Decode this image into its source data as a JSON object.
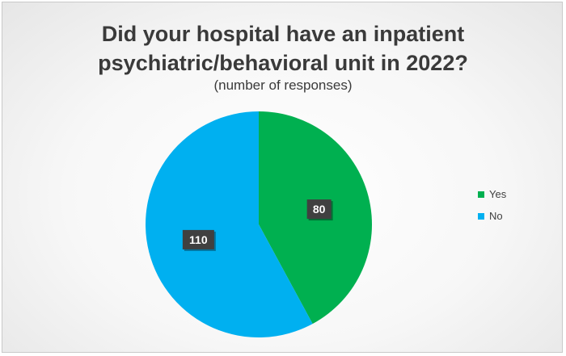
{
  "chart_data": {
    "type": "pie",
    "title_line1": "Did your hospital have an inpatient",
    "title_line2": "psychiatric/behavioral unit in 2022?",
    "subtitle": "(number of responses)",
    "categories": [
      "Yes",
      "No"
    ],
    "values": [
      80,
      110
    ],
    "colors": [
      "#00b050",
      "#00b0f0"
    ],
    "data_labels": [
      "80",
      "110"
    ],
    "start_angle_deg": 0,
    "direction": "clockwise",
    "legend_position": "right"
  }
}
